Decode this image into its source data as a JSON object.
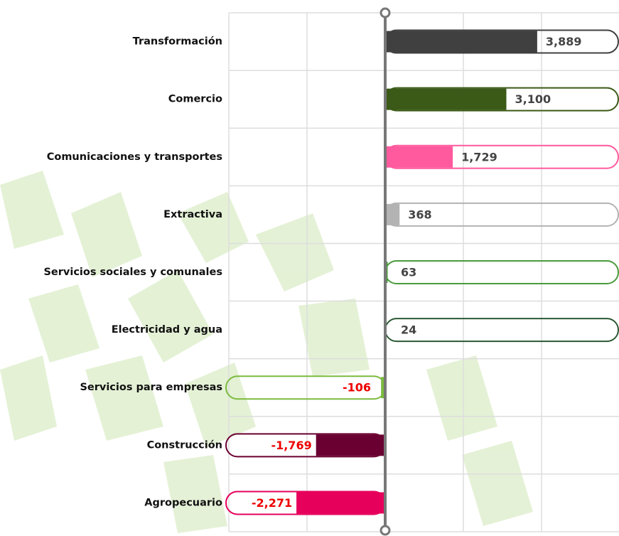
{
  "chart_data": {
    "type": "hbar",
    "categories": [
      "Transformación",
      "Comercio",
      "Comunicaciones y transportes",
      "Extractiva",
      "Servicios sociales y comunales",
      "Electricidad y agua",
      "Servicios para empresas",
      "Construcción",
      "Agropecuario"
    ],
    "values": [
      3889,
      3100,
      1729,
      368,
      63,
      24,
      -106,
      -1769,
      -2271
    ],
    "value_labels": [
      "3,889",
      "3,100",
      "1,729",
      "368",
      "63",
      "24",
      "-106",
      "-1,769",
      "-2,271"
    ],
    "colors": [
      "#404040",
      "#3b5a17",
      "#ff5a9e",
      "#b3b3b3",
      "#4a9a3c",
      "#2b5a33",
      "#7bbb3f",
      "#6a0032",
      "#e6005c"
    ],
    "negative_label_color": "#ee0000",
    "xlim": [
      -4000,
      6000
    ],
    "xticks": [
      -4000,
      -2000,
      0,
      2000,
      4000,
      6000
    ],
    "grid": true
  }
}
